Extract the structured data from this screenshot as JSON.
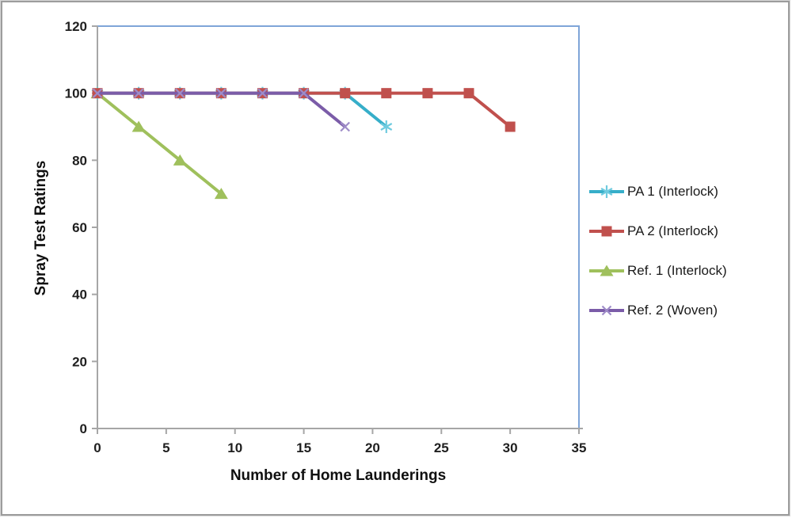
{
  "chart_data": {
    "type": "line",
    "title": "",
    "xlabel": "Number of Home Launderings",
    "ylabel": "Spray Test Ratings",
    "xlim": [
      0,
      35
    ],
    "ylim": [
      0,
      120
    ],
    "xticks": [
      0,
      5,
      10,
      15,
      20,
      25,
      30,
      35
    ],
    "yticks": [
      0,
      20,
      40,
      60,
      80,
      100,
      120
    ],
    "grid": false,
    "legend_position": "right",
    "draw_order": [
      0,
      2,
      1,
      3
    ],
    "series": [
      {
        "name": "PA 1 (Interlock)",
        "marker": "asterisk",
        "color": "#36aec9",
        "marker_color": "#6fcbdf",
        "points": [
          [
            0,
            100
          ],
          [
            3,
            100
          ],
          [
            6,
            100
          ],
          [
            9,
            100
          ],
          [
            12,
            100
          ],
          [
            15,
            100
          ],
          [
            18,
            100
          ],
          [
            21,
            90
          ]
        ]
      },
      {
        "name": "PA 2 (Interlock)",
        "marker": "square",
        "color": "#c0504d",
        "marker_color": "#c0504d",
        "points": [
          [
            0,
            100
          ],
          [
            3,
            100
          ],
          [
            6,
            100
          ],
          [
            9,
            100
          ],
          [
            12,
            100
          ],
          [
            15,
            100
          ],
          [
            18,
            100
          ],
          [
            21,
            100
          ],
          [
            24,
            100
          ],
          [
            27,
            100
          ],
          [
            30,
            90
          ]
        ]
      },
      {
        "name": "Ref. 1 (Interlock)",
        "marker": "triangle",
        "color": "#9fc05c",
        "marker_color": "#9fc05c",
        "points": [
          [
            0,
            100
          ],
          [
            3,
            90
          ],
          [
            6,
            80
          ],
          [
            9,
            70
          ]
        ]
      },
      {
        "name": "Ref. 2 (Woven)",
        "marker": "x",
        "color": "#7b5ca8",
        "marker_color": "#9e8cc8",
        "points": [
          [
            0,
            100
          ],
          [
            3,
            100
          ],
          [
            6,
            100
          ],
          [
            9,
            100
          ],
          [
            12,
            100
          ],
          [
            15,
            100
          ],
          [
            18,
            90
          ]
        ]
      }
    ],
    "colors": {
      "plot_border": "#7fa5d8",
      "axis": "#a6a6a6",
      "tick_label": "#1f1f1f",
      "axis_title": "#101010",
      "legend_text": "#1a1a1a",
      "outer_border": "#9c9c9c"
    }
  }
}
